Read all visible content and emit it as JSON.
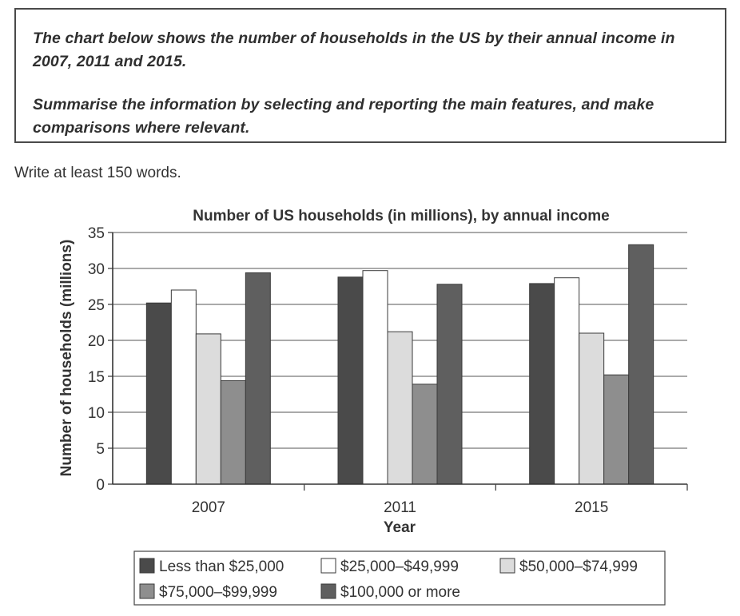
{
  "task": {
    "paragraph_1": "The chart below shows the number of households in the US by their annual income in 2007, 2011 and 2015.",
    "paragraph_2": "Summarise the information by selecting and reporting the main features, and make comparisons where relevant."
  },
  "instruction": "Write at least 150 words.",
  "chart_data": {
    "type": "bar",
    "title": "Number of US households (in millions), by annual income",
    "xlabel": "Year",
    "ylabel": "Number of households (millions)",
    "categories": [
      "2007",
      "2011",
      "2015"
    ],
    "ylim": [
      0,
      35
    ],
    "yticks": [
      0,
      5,
      10,
      15,
      20,
      25,
      30,
      35
    ],
    "grid": true,
    "legend_position": "bottom",
    "series": [
      {
        "name": "Less than $25,000",
        "values": [
          25.2,
          28.8,
          27.9
        ],
        "color": "#4a4a4a"
      },
      {
        "name": "$25,000–$49,999",
        "values": [
          27.0,
          29.7,
          28.7
        ],
        "color": "#ffffff"
      },
      {
        "name": "$50,000–$74,999",
        "values": [
          20.9,
          21.2,
          21.0
        ],
        "color": "#dcdcdc"
      },
      {
        "name": "$75,000–$99,999",
        "values": [
          14.4,
          13.9,
          15.2
        ],
        "color": "#8e8e8e"
      },
      {
        "name": "$100,000 or more",
        "values": [
          29.4,
          27.8,
          33.3
        ],
        "color": "#5f5f5f"
      }
    ]
  }
}
